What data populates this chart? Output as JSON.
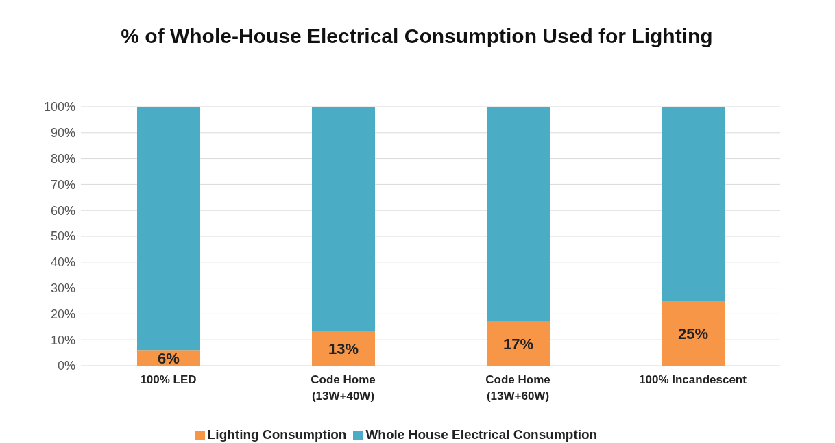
{
  "chart_data": {
    "type": "bar",
    "title": "% of Whole-House Electrical Consumption Used for Lighting",
    "categories": [
      "100% LED",
      "Code Home\n(13W+40W)",
      "Code Home\n(13W+60W)",
      "100% Incandescent"
    ],
    "stacked": true,
    "series": [
      {
        "name": "Lighting Consumption",
        "color": "#f79646",
        "values": [
          6,
          13,
          17,
          25
        ],
        "value_labels": [
          "6%",
          "13%",
          "17%",
          "25%"
        ]
      },
      {
        "name": "Whole House Electrical Consumption",
        "color": "#4bacc6",
        "values": [
          94,
          87,
          83,
          75
        ]
      }
    ],
    "ylim": [
      0,
      100
    ],
    "yticks": [
      {
        "value": 0,
        "label": "0%"
      },
      {
        "value": 10,
        "label": "10%"
      },
      {
        "value": 20,
        "label": "20%"
      },
      {
        "value": 30,
        "label": "30%"
      },
      {
        "value": 40,
        "label": "40%"
      },
      {
        "value": 50,
        "label": "50%"
      },
      {
        "value": 60,
        "label": "60%"
      },
      {
        "value": 70,
        "label": "70%"
      },
      {
        "value": 80,
        "label": "80%"
      },
      {
        "value": 90,
        "label": "90%"
      },
      {
        "value": 100,
        "label": "100%"
      }
    ],
    "grid": "y",
    "legend": "bottom"
  }
}
